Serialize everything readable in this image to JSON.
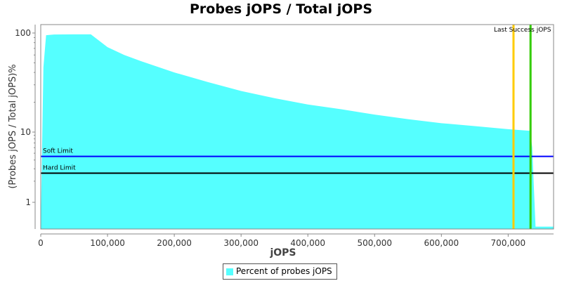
{
  "chart_data": {
    "type": "area",
    "title": "Probes jOPS / Total jOPS",
    "xlabel": "jOPS",
    "ylabel": "(Probes jOPS / Total jOPS)%",
    "y_scale": "log",
    "xlim": [
      0,
      768000
    ],
    "ylim": [
      0.42,
      122
    ],
    "x_ticks": [
      0,
      100000,
      200000,
      300000,
      400000,
      500000,
      600000,
      700000
    ],
    "x_tick_labels": [
      "0",
      "100,000",
      "200,000",
      "300,000",
      "400,000",
      "500,000",
      "600,000",
      "700,000"
    ],
    "y_ticks": [
      1,
      10,
      100
    ],
    "y_tick_labels": [
      "1",
      "10",
      "100"
    ],
    "grid": false,
    "legend_placement": "bottom",
    "series": [
      {
        "name": "Percent of probes jOPS",
        "color": "#55ffff",
        "x": [
          0,
          4000,
          8000,
          20000,
          50000,
          75000,
          100000,
          125000,
          150000,
          200000,
          250000,
          300000,
          350000,
          400000,
          450000,
          500000,
          550000,
          600000,
          650000,
          700000,
          733000,
          736000,
          741000,
          768000
        ],
        "y": [
          0.42,
          45,
          95,
          96.5,
          97,
          97,
          72,
          60,
          52,
          40,
          32,
          26,
          22,
          19,
          17,
          15,
          13.5,
          12.3,
          11.5,
          10.7,
          10.3,
          6,
          0.45,
          0.45
        ]
      }
    ],
    "horizontal_lines": [
      {
        "label": "Soft Limit",
        "y": 4.5,
        "color": "#0000ff"
      },
      {
        "label": "Hard Limit",
        "y": 2.6,
        "color": "#000000"
      }
    ],
    "vertical_lines": [
      {
        "x": 708000,
        "color": "#ffcc00"
      },
      {
        "x": 733500,
        "color": "#33cc00"
      }
    ],
    "vertical_line_labels_overlapping": "Last Success jOPS / Limit Sc..."
  }
}
